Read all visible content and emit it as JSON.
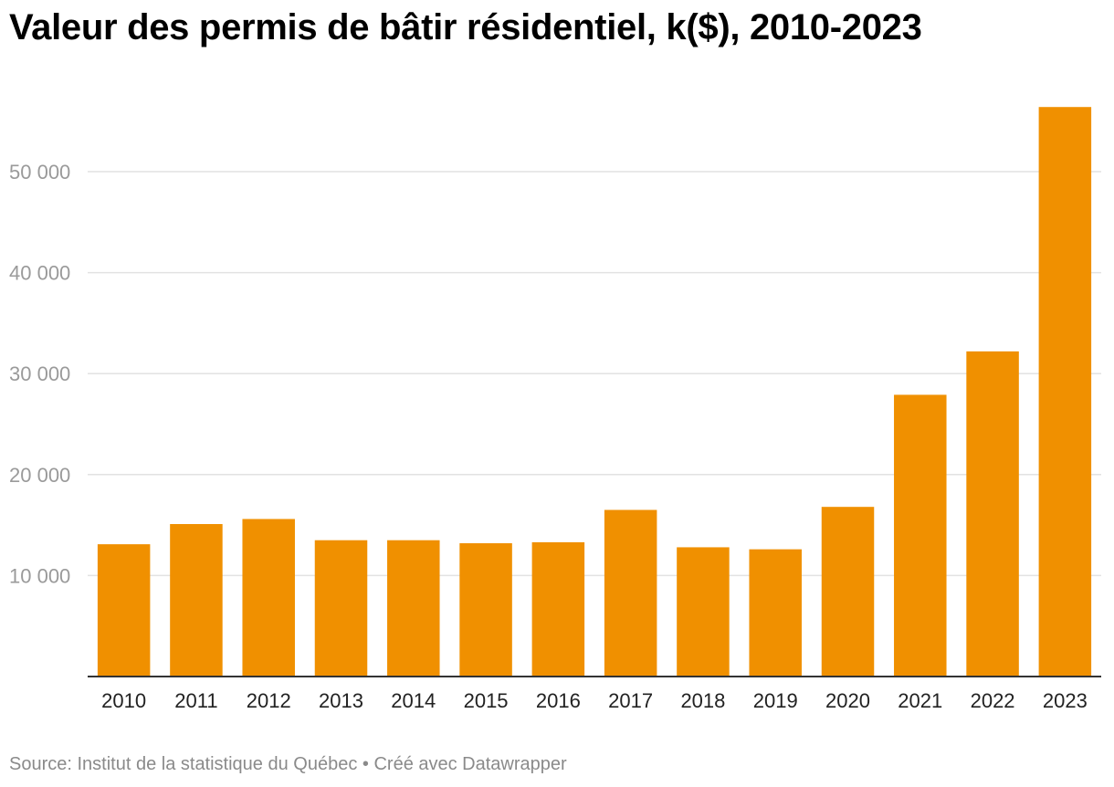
{
  "title": "Valeur des permis de bâtir résidentiel, k($), 2010-2023",
  "footer": {
    "source": "Source: Institut de la statistique du Québec",
    "separator": " • ",
    "credit": "Créé avec Datawrapper"
  },
  "colors": {
    "bar": "#f09000",
    "grid": "#e2e2e2",
    "baseline": "#333333"
  },
  "chart_data": {
    "type": "bar",
    "title": "Valeur des permis de bâtir résidentiel, k($), 2010-2023",
    "xlabel": "",
    "ylabel": "",
    "categories": [
      "2010",
      "2011",
      "2012",
      "2013",
      "2014",
      "2015",
      "2016",
      "2017",
      "2018",
      "2019",
      "2020",
      "2021",
      "2022",
      "2023"
    ],
    "values": [
      13100,
      15100,
      15600,
      13500,
      13500,
      13200,
      13300,
      16500,
      12800,
      12600,
      16800,
      27900,
      32200,
      56400
    ],
    "ylim": [
      0,
      60000
    ],
    "yticks": [
      10000,
      20000,
      30000,
      40000,
      50000
    ],
    "ytick_labels": [
      "10 000",
      "20 000",
      "30 000",
      "40 000",
      "50 000"
    ],
    "grid": true,
    "legend": "none"
  }
}
